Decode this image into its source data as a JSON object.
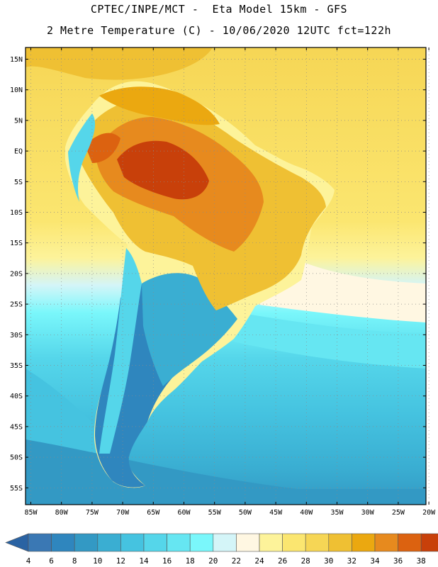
{
  "header": {
    "title_line1": "CPTEC/INPE/MCT -  Eta Model 15km - GFS",
    "title_line2": "2 Metre Temperature (C) - 10/06/2020 12UTC fct=122h"
  },
  "map": {
    "lat_labels": [
      "15N",
      "10N",
      "5N",
      "EQ",
      "5S",
      "10S",
      "15S",
      "20S",
      "25S",
      "30S",
      "35S",
      "40S",
      "45S",
      "50S",
      "55S"
    ],
    "lon_labels": [
      "85W",
      "80W",
      "75W",
      "70W",
      "65W",
      "60W",
      "55W",
      "50W",
      "45W",
      "40W",
      "35W",
      "30W",
      "25W",
      "20W"
    ]
  },
  "colorbar": {
    "ticks": [
      "4",
      "6",
      "8",
      "10",
      "12",
      "14",
      "16",
      "18",
      "20",
      "22",
      "24",
      "26",
      "28",
      "30",
      "32",
      "34",
      "36",
      "38"
    ],
    "colors": [
      "#3a78b4",
      "#2f86be",
      "#3399c4",
      "#3aaed2",
      "#45c3e0",
      "#55d6ea",
      "#66e6f2",
      "#7af7fb",
      "#d4f5f8",
      "#fff7e2",
      "#fdf39a",
      "#fbe670",
      "#f6d655",
      "#efc033",
      "#eba810",
      "#e78a1e",
      "#dc6210",
      "#c8400a",
      "#a62a0a"
    ],
    "under_color": "#2a63a3",
    "over_color": "#a62a0a"
  }
}
